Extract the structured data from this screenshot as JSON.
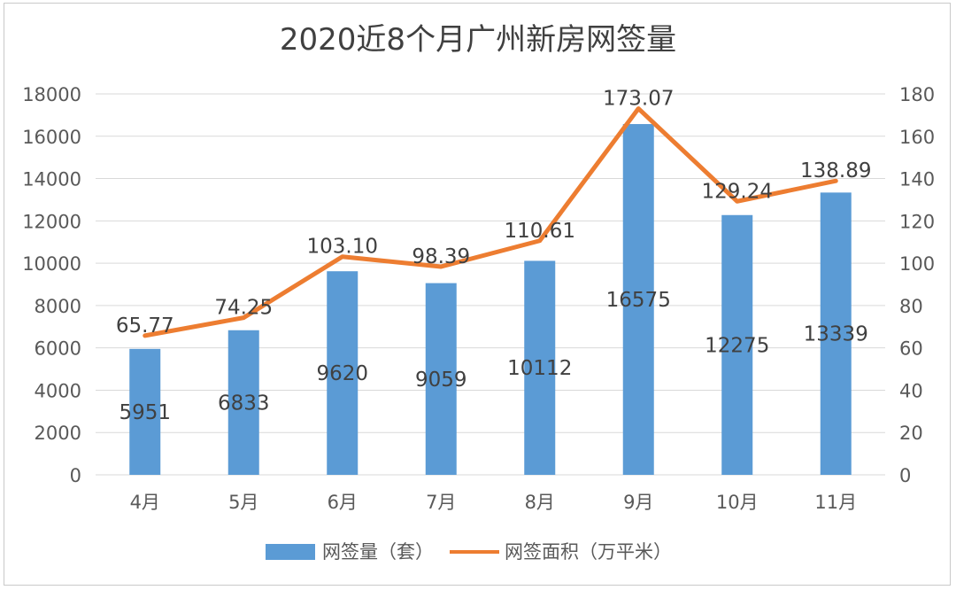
{
  "chart_data": {
    "type": "bar+line",
    "title": "2020近8个月广州新房网签量",
    "categories": [
      "4月",
      "5月",
      "6月",
      "7月",
      "8月",
      "9月",
      "10月",
      "11月"
    ],
    "series": [
      {
        "name": "网签量（套）",
        "type": "bar",
        "axis": "left",
        "color": "#5b9bd5",
        "values": [
          5951,
          6833,
          9620,
          9059,
          10112,
          16575,
          12275,
          13339
        ],
        "labels": [
          "5951",
          "6833",
          "9620",
          "9059",
          "10112",
          "16575",
          "12275",
          "13339"
        ]
      },
      {
        "name": "网签面积（万平米）",
        "type": "line",
        "axis": "right",
        "color": "#ed7d31",
        "values": [
          65.77,
          74.25,
          103.1,
          98.39,
          110.61,
          173.07,
          129.24,
          138.89
        ],
        "labels": [
          "65.77",
          "74.25",
          "103.10",
          "98.39",
          "110.61",
          "173.07",
          "129.24",
          "138.89"
        ]
      }
    ],
    "y_left": {
      "min": 0,
      "max": 18000,
      "step": 2000,
      "ticks": [
        "0",
        "2000",
        "4000",
        "6000",
        "8000",
        "10000",
        "12000",
        "14000",
        "16000",
        "18000"
      ]
    },
    "y_right": {
      "min": 0,
      "max": 180,
      "step": 20,
      "ticks": [
        "0",
        "20",
        "40",
        "60",
        "80",
        "100",
        "120",
        "140",
        "160",
        "180"
      ]
    },
    "grid": true,
    "legend": "bottom"
  }
}
